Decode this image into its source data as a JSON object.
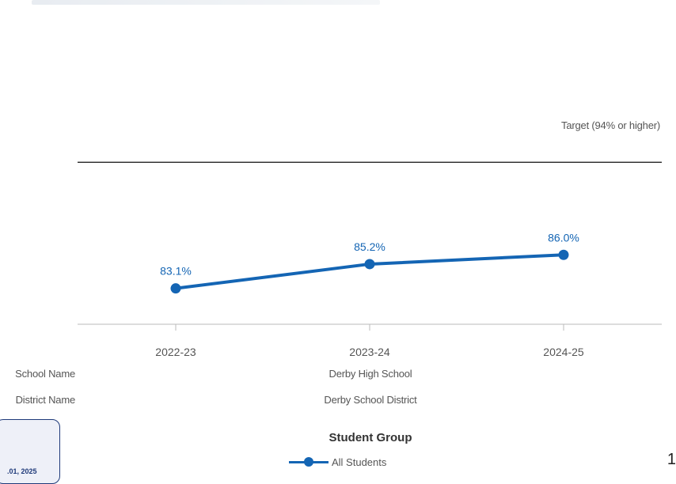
{
  "chart_data": {
    "type": "line",
    "categories": [
      "2022-23",
      "2023-24",
      "2024-25"
    ],
    "series": [
      {
        "name": "All Students",
        "values": [
          83.1,
          85.2,
          86.0
        ],
        "color": "#1465b4"
      }
    ],
    "data_labels": [
      "83.1%",
      "85.2%",
      "86.0%"
    ],
    "target": {
      "value": 94,
      "label": "Target (94% or higher)"
    },
    "ylim": [
      80,
      96
    ],
    "grid": false,
    "legend_position": "bottom"
  },
  "table": {
    "school_label": "School Name",
    "school_value": "Derby High School",
    "district_label": "District Name",
    "district_value": "Derby School District"
  },
  "legend": {
    "title": "Student Group"
  },
  "side_box": {
    "text": ".01, 2025"
  },
  "page_number": "1"
}
